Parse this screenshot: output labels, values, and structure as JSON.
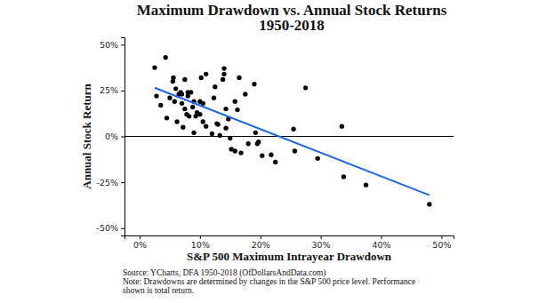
{
  "chart_data": {
    "type": "scatter",
    "title": [
      "Maximum Drawdown vs. Annual Stock Returns",
      "1950-2018"
    ],
    "x_label": "S&P 500 Maximum Intrayear Drawdown",
    "y_label": "Annual Stock Return",
    "source": "Source: YCharts, DFA 1950-2018 (OfDollarsAndData.com)",
    "notes": [
      "Note: Drawdowns are determined by changes in the S&P 500 price level. Performance",
      "shown is total return."
    ],
    "xlim": [
      -2.5,
      52
    ],
    "ylim": [
      -54,
      54
    ],
    "xticks": [
      {
        "value": 0,
        "label": "0%"
      },
      {
        "value": 10,
        "label": "10%"
      },
      {
        "value": 20,
        "label": "20%"
      },
      {
        "value": 30,
        "label": "30%"
      },
      {
        "value": 40,
        "label": "40%"
      },
      {
        "value": 50,
        "label": "50%"
      }
    ],
    "yticks": [
      {
        "value": -50,
        "label": "-50%"
      },
      {
        "value": -25,
        "label": "-25%"
      },
      {
        "value": 0,
        "label": "0%"
      },
      {
        "value": 25,
        "label": "25%"
      },
      {
        "value": 50,
        "label": "50%"
      }
    ],
    "hline": 0,
    "grid": false,
    "series": [
      {
        "type": "scatter",
        "color": "#000000",
        "marker": "circle",
        "x": [
          2.5,
          2.8,
          3.5,
          4.3,
          4.5,
          5,
          5.5,
          5.6,
          5.8,
          6,
          6.2,
          6.5,
          6.8,
          7,
          7,
          7.2,
          7.5,
          7.5,
          7.8,
          8,
          8,
          8.2,
          8.5,
          8.8,
          9,
          9,
          9.3,
          9.5,
          10,
          10,
          10.2,
          10.5,
          10.5,
          11,
          11,
          12,
          12.3,
          12.5,
          12.8,
          13,
          13.3,
          13.8,
          14,
          14,
          14.3,
          14.3,
          14.7,
          15,
          15.2,
          15.8,
          15.8,
          16.2,
          16.5,
          16.8,
          17.5,
          18,
          19,
          19.2,
          19.5,
          19.7,
          20.3,
          21.8,
          22.5,
          25.5,
          25.7,
          27.5,
          29.5,
          33.5,
          33.8,
          37.5,
          48
        ],
        "values": [
          37.5,
          22,
          17,
          43,
          10,
          21,
          30,
          32,
          19,
          26,
          8,
          23,
          24,
          18,
          23,
          5,
          31,
          15,
          12,
          24,
          22,
          11,
          24,
          16,
          2,
          19,
          11,
          13,
          12,
          19,
          32,
          8,
          18,
          5.5,
          34,
          1.5,
          21,
          27,
          7,
          6.5,
          0.5,
          31,
          37,
          34,
          15,
          4.5,
          9.5,
          -1,
          -7,
          19,
          -8,
          14.5,
          32,
          -9,
          23,
          -4,
          28.5,
          2,
          -4,
          -3,
          -10.5,
          -10,
          -14,
          4,
          -8,
          26.5,
          -12,
          5.5,
          -22,
          -26.5,
          -37
        ]
      },
      {
        "type": "line",
        "color": "#1f66e5",
        "line_style": "solid",
        "x": [
          2.5,
          48
        ],
        "values": [
          26.5,
          -32
        ]
      }
    ]
  }
}
